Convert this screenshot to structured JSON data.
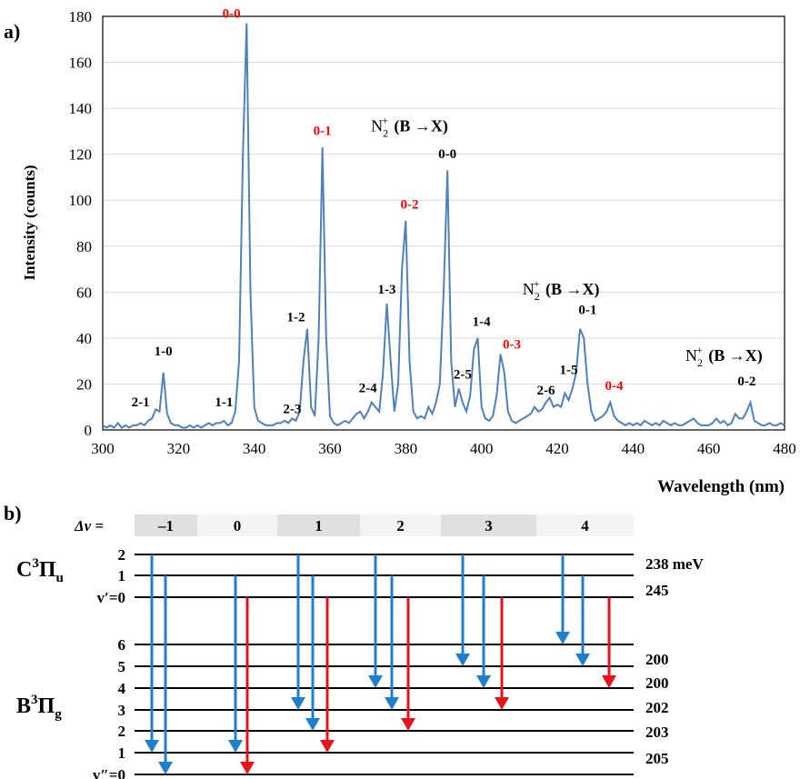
{
  "panel_a_label": "a)",
  "panel_b_label": "b)",
  "chart_data": {
    "type": "line",
    "xlabel": "Wavelength (nm)",
    "ylabel": "Intensity (counts)",
    "xlim": [
      300,
      480
    ],
    "ylim": [
      0,
      180
    ],
    "xticks": [
      300,
      320,
      340,
      360,
      380,
      400,
      420,
      440,
      460,
      480
    ],
    "yticks": [
      0,
      20,
      40,
      60,
      80,
      100,
      120,
      140,
      160,
      180
    ],
    "grid": "horizontal",
    "line_color": "#4f81bd",
    "x": [
      300,
      301,
      302,
      303,
      304,
      305,
      306,
      307,
      308,
      309,
      310,
      311,
      312,
      313,
      314,
      315,
      316,
      317,
      318,
      319,
      320,
      321,
      322,
      323,
      324,
      325,
      326,
      327,
      328,
      329,
      330,
      331,
      332,
      333,
      334,
      335,
      336,
      337,
      338,
      339,
      340,
      341,
      342,
      343,
      344,
      345,
      346,
      347,
      348,
      349,
      350,
      351,
      352,
      353,
      354,
      355,
      356,
      357,
      358,
      359,
      360,
      361,
      362,
      363,
      364,
      365,
      366,
      367,
      368,
      369,
      370,
      371,
      372,
      373,
      374,
      375,
      376,
      377,
      378,
      379,
      380,
      381,
      382,
      383,
      384,
      385,
      386,
      387,
      388,
      389,
      390,
      391,
      392,
      393,
      394,
      395,
      396,
      397,
      398,
      399,
      400,
      401,
      402,
      403,
      404,
      405,
      406,
      407,
      408,
      409,
      410,
      411,
      412,
      413,
      414,
      415,
      416,
      417,
      418,
      419,
      420,
      421,
      422,
      423,
      424,
      425,
      426,
      427,
      428,
      429,
      430,
      431,
      432,
      433,
      434,
      435,
      436,
      437,
      438,
      439,
      440,
      441,
      442,
      443,
      444,
      445,
      446,
      447,
      448,
      449,
      450,
      451,
      452,
      453,
      454,
      455,
      456,
      457,
      458,
      459,
      460,
      461,
      462,
      463,
      464,
      465,
      466,
      467,
      468,
      469,
      470,
      471,
      472,
      473,
      474,
      475,
      476,
      477,
      478,
      479,
      480
    ],
    "y": [
      2,
      1,
      2,
      1,
      3,
      1,
      2,
      1,
      2,
      2,
      3,
      2,
      4,
      5,
      9,
      8,
      25,
      7,
      3,
      2,
      2,
      1,
      1,
      2,
      1,
      2,
      1,
      2,
      3,
      2,
      3,
      3,
      4,
      2,
      3,
      8,
      30,
      120,
      177,
      60,
      10,
      4,
      3,
      2,
      2,
      2,
      3,
      3,
      4,
      3,
      5,
      4,
      8,
      30,
      44,
      10,
      6,
      40,
      123,
      40,
      6,
      3,
      2,
      3,
      4,
      3,
      5,
      7,
      8,
      5,
      8,
      12,
      10,
      8,
      25,
      55,
      30,
      8,
      20,
      70,
      91,
      30,
      8,
      5,
      6,
      5,
      10,
      7,
      12,
      20,
      60,
      113,
      30,
      10,
      18,
      12,
      8,
      15,
      35,
      40,
      10,
      5,
      4,
      6,
      15,
      33,
      25,
      8,
      4,
      3,
      4,
      5,
      6,
      7,
      10,
      8,
      9,
      12,
      14,
      10,
      11,
      10,
      16,
      13,
      18,
      25,
      44,
      40,
      20,
      8,
      4,
      5,
      6,
      8,
      12,
      6,
      4,
      3,
      2,
      3,
      2,
      3,
      2,
      4,
      3,
      2,
      3,
      2,
      4,
      3,
      2,
      3,
      2,
      2,
      3,
      4,
      5,
      3,
      2,
      2,
      2,
      3,
      5,
      3,
      4,
      2,
      3,
      7,
      5,
      5,
      8,
      12,
      4,
      3,
      2,
      2,
      3,
      2,
      2,
      3,
      2
    ],
    "annotations": [
      {
        "text": "2-1",
        "x": 310,
        "y": 8,
        "color": "#000000"
      },
      {
        "text": "1-0",
        "x": 316,
        "y": 30,
        "color": "#000000"
      },
      {
        "text": "1-1",
        "x": 332,
        "y": 8,
        "color": "#000000"
      },
      {
        "text": "0-0",
        "x": 334,
        "y": 177,
        "color": "#ff0000"
      },
      {
        "text": "2-3",
        "x": 350,
        "y": 5,
        "color": "#000000"
      },
      {
        "text": "1-2",
        "x": 351,
        "y": 45,
        "color": "#000000"
      },
      {
        "text": "0-1",
        "x": 358,
        "y": 126,
        "color": "#ff0000"
      },
      {
        "text": "2-4",
        "x": 370,
        "y": 14,
        "color": "#000000"
      },
      {
        "text": "1-3",
        "x": 375,
        "y": 57,
        "color": "#000000"
      },
      {
        "text": "0-2",
        "x": 381,
        "y": 94,
        "color": "#ff0000"
      },
      {
        "text": "0-0",
        "x": 391,
        "y": 116,
        "color": "#000000"
      },
      {
        "text": "2-5",
        "x": 395,
        "y": 20,
        "color": "#000000"
      },
      {
        "text": "1-4",
        "x": 400,
        "y": 43,
        "color": "#000000"
      },
      {
        "text": "0-3",
        "x": 408,
        "y": 33,
        "color": "#ff0000"
      },
      {
        "text": "2-6",
        "x": 417,
        "y": 13,
        "color": "#000000"
      },
      {
        "text": "1-5",
        "x": 423,
        "y": 22,
        "color": "#000000"
      },
      {
        "text": "0-1",
        "x": 428,
        "y": 48,
        "color": "#000000"
      },
      {
        "text": "0-4",
        "x": 435,
        "y": 15,
        "color": "#ff0000"
      },
      {
        "text": "0-2",
        "x": 470,
        "y": 17,
        "color": "#000000"
      }
    ],
    "band_labels": [
      {
        "main": "N",
        "sub": "2",
        "sup": "+",
        "text": "(B →X)",
        "x": 381,
        "y": 130
      },
      {
        "main": "N",
        "sub": "2",
        "sup": "+",
        "text": "(B →X)",
        "x": 421,
        "y": 59
      },
      {
        "main": "N",
        "sub": "2",
        "sup": "+",
        "text": "(B →X)",
        "x": 464,
        "y": 30
      }
    ]
  },
  "diagram": {
    "delta_v_label": "Δv =",
    "delta_v_values": [
      "–1",
      "0",
      "1",
      "2",
      "3",
      "4"
    ],
    "upper_state": "C",
    "upper_state_sup": "3",
    "upper_state_sym": "Π",
    "upper_state_sub": "u",
    "lower_state": "B",
    "lower_state_sup": "3",
    "lower_state_sym": "Π",
    "lower_state_sub": "g",
    "upper_level_labels": [
      "2",
      "1",
      "v′=0"
    ],
    "lower_level_labels": [
      "6",
      "5",
      "4",
      "3",
      "2",
      "1",
      "v″=0"
    ],
    "energy_labels": [
      "238 meV",
      "245",
      "200",
      "200",
      "202",
      "203",
      "205"
    ],
    "arrow_colors": {
      "blue": "#1f7fcf",
      "red": "#e8121b"
    }
  }
}
